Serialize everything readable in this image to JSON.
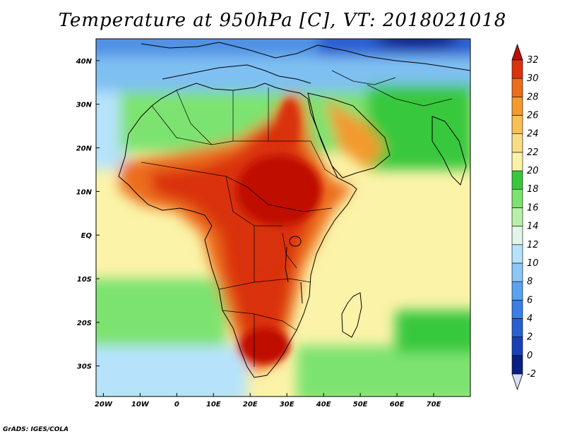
{
  "title": "Temperature at 950hPa [C], VT: 2018021018",
  "credit": "GrADS: IGES/COLA",
  "map": {
    "region": "Africa and surrounding ocean",
    "variable": "Temperature",
    "level": "950hPa",
    "units": "C",
    "valid_time": "2018021018",
    "lon_range": [
      -22,
      80
    ],
    "lat_range": [
      -37,
      45
    ],
    "lon_labels": [
      {
        "lon": -20,
        "label": "20W"
      },
      {
        "lon": -10,
        "label": "10W"
      },
      {
        "lon": 0,
        "label": "0"
      },
      {
        "lon": 10,
        "label": "10E"
      },
      {
        "lon": 20,
        "label": "20E"
      },
      {
        "lon": 30,
        "label": "30E"
      },
      {
        "lon": 40,
        "label": "40E"
      },
      {
        "lon": 50,
        "label": "50E"
      },
      {
        "lon": 60,
        "label": "60E"
      },
      {
        "lon": 70,
        "label": "70E"
      }
    ],
    "lat_labels": [
      {
        "lat": 40,
        "label": "40N"
      },
      {
        "lat": 30,
        "label": "30N"
      },
      {
        "lat": 20,
        "label": "20N"
      },
      {
        "lat": 10,
        "label": "10N"
      },
      {
        "lat": 0,
        "label": "EQ"
      },
      {
        "lat": -10,
        "label": "10S"
      },
      {
        "lat": -20,
        "label": "20S"
      },
      {
        "lat": -30,
        "label": "30S"
      }
    ]
  },
  "colorbar": {
    "levels": [
      "-2",
      "0",
      "2",
      "4",
      "6",
      "8",
      "10",
      "12",
      "14",
      "16",
      "18",
      "20",
      "22",
      "24",
      "26",
      "28",
      "30",
      "32"
    ],
    "colors": [
      "#0a1f82",
      "#1a40b8",
      "#2a5fd2",
      "#3a7fe6",
      "#5aa3f0",
      "#8cc7f8",
      "#b6e3fb",
      "#e1f6e8",
      "#b7f1a9",
      "#7de36f",
      "#39c83c",
      "#fbf3a8",
      "#f9dd85",
      "#f7bf55",
      "#f29a2e",
      "#ec6d1c",
      "#d9330e"
    ],
    "under_color": "#dcdcff",
    "over_color": "#bf0d06"
  }
}
